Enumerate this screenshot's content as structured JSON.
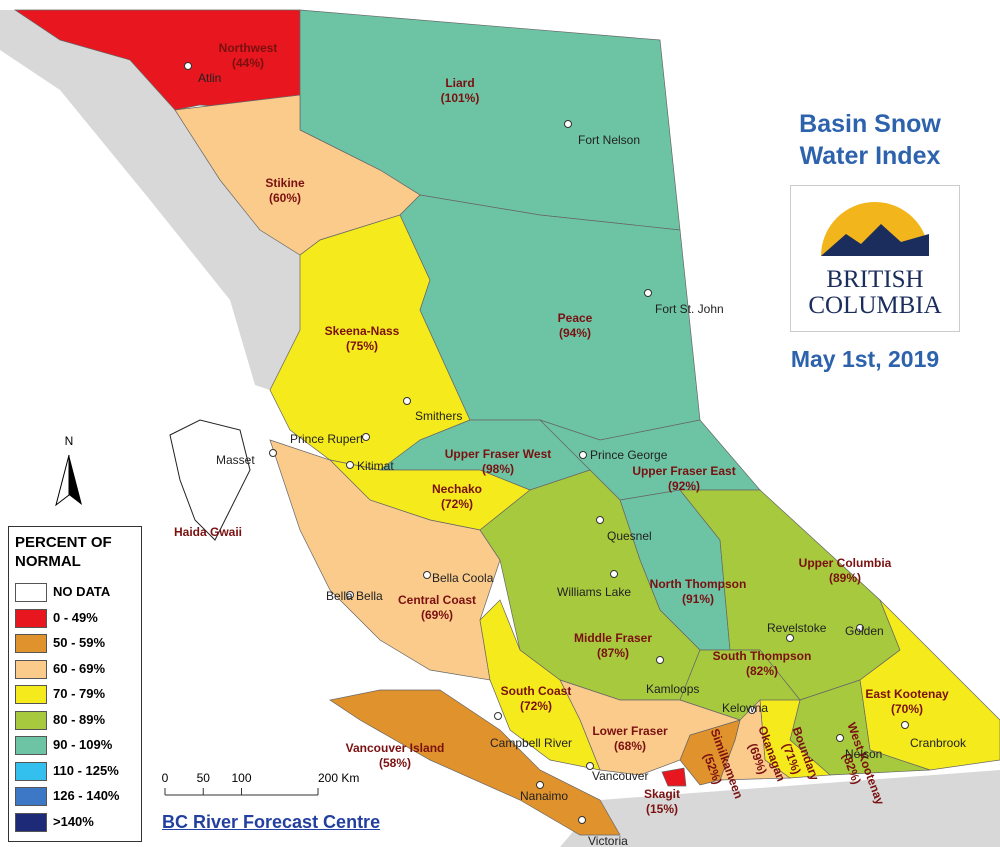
{
  "title": "Basin Snow Water Index",
  "logo": {
    "line1": "BRITISH",
    "line2": "COLUMBIA"
  },
  "date": "May 1st, 2019",
  "north": "N",
  "legend": {
    "title": "PERCENT OF NORMAL",
    "items": [
      {
        "label": "NO DATA",
        "color": "#ffffff"
      },
      {
        "label": "0 - 49%",
        "color": "#e8161e"
      },
      {
        "label": "50 - 59%",
        "color": "#e0922c"
      },
      {
        "label": "60 - 69%",
        "color": "#fbcb8c"
      },
      {
        "label": "70 - 79%",
        "color": "#f4ea1c"
      },
      {
        "label": "80 - 89%",
        "color": "#a7c93e"
      },
      {
        "label": "90 - 109%",
        "color": "#6dc4a5"
      },
      {
        "label": "110 - 125%",
        "color": "#33c0ef"
      },
      {
        "label": "126 - 140%",
        "color": "#3d78c6"
      },
      {
        "label": ">140%",
        "color": "#1c2a78"
      }
    ]
  },
  "scale": {
    "ticks": [
      0,
      50,
      100,
      {
        "value": 200,
        "label": "200 Km"
      }
    ]
  },
  "credit": "BC River Forecast Centre",
  "basins": [
    {
      "name": "Northwest",
      "value": "(44%)",
      "class": 1
    },
    {
      "name": "Liard",
      "value": "(101%)",
      "class": 6
    },
    {
      "name": "Stikine",
      "value": "(60%)",
      "class": 3
    },
    {
      "name": "Skeena-Nass",
      "value": "(75%)",
      "class": 4
    },
    {
      "name": "Peace",
      "value": "(94%)",
      "class": 6
    },
    {
      "name": "Upper Fraser West",
      "value": "(98%)",
      "class": 6
    },
    {
      "name": "Upper Fraser East",
      "value": "(92%)",
      "class": 6
    },
    {
      "name": "Nechako",
      "value": "(72%)",
      "class": 4
    },
    {
      "name": "Central Coast",
      "value": "(69%)",
      "class": 3
    },
    {
      "name": "Haida Gwaii",
      "class": 0
    },
    {
      "name": "North Thompson",
      "value": "(91%)",
      "class": 6
    },
    {
      "name": "Upper Columbia",
      "value": "(89%)",
      "class": 5
    },
    {
      "name": "Middle Fraser",
      "value": "(87%)",
      "class": 5
    },
    {
      "name": "South Thompson",
      "value": "(82%)",
      "class": 5
    },
    {
      "name": "East Kootenay",
      "value": "(70%)",
      "class": 4
    },
    {
      "name": "West Kootenay",
      "value": "(82%)",
      "class": 5
    },
    {
      "name": "Boundary",
      "value": "(71%)",
      "class": 4
    },
    {
      "name": "Okanagan",
      "value": "(69%)",
      "class": 3
    },
    {
      "name": "Similkameen",
      "value": "(52%)",
      "class": 2
    },
    {
      "name": "Lower Fraser",
      "value": "(68%)",
      "class": 3
    },
    {
      "name": "South Coast",
      "value": "(72%)",
      "class": 4
    },
    {
      "name": "Vancouver Island",
      "value": "(58%)",
      "class": 2
    },
    {
      "name": "Skagit",
      "value": "(15%)",
      "class": 1
    }
  ],
  "cities": [
    "Atlin",
    "Fort Nelson",
    "Fort St. John",
    "Smithers",
    "Prince Rupert",
    "Masset",
    "Kitimat",
    "Prince George",
    "Quesnel",
    "Williams Lake",
    "Bella Coola",
    "Bella Bella",
    "Revelstoke",
    "Golden",
    "Kamloops",
    "Kelowna",
    "Nelson",
    "Cranbrook",
    "Campbell River",
    "Vancouver",
    "Nanaimo",
    "Victoria"
  ]
}
